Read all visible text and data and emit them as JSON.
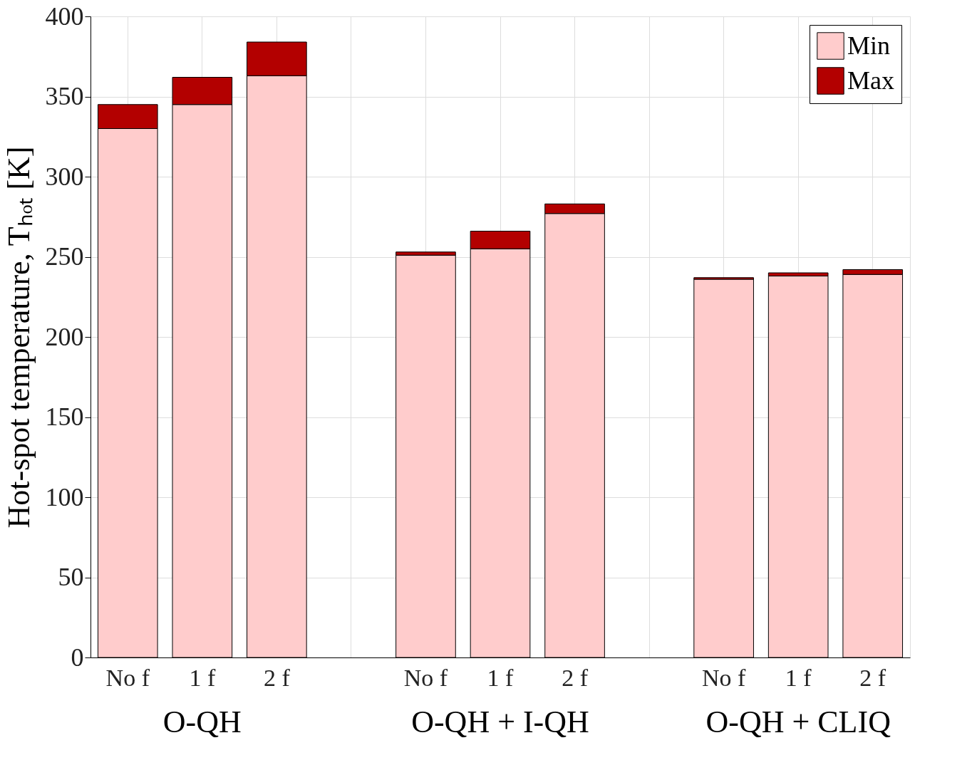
{
  "chart_data": {
    "type": "bar",
    "stacked": true,
    "categories": [
      "No f",
      "1 f",
      "2 f",
      null,
      "No f",
      "1 f",
      "2 f",
      null,
      "No f",
      "1 f",
      "2 f"
    ],
    "series": [
      {
        "name": "Min",
        "color": "#ffcccc",
        "values": [
          330,
          345,
          363,
          null,
          251,
          255,
          277,
          null,
          236,
          238,
          239
        ]
      },
      {
        "name": "Max",
        "color": "#b30000",
        "values": [
          15,
          17,
          21,
          null,
          2,
          11,
          6,
          null,
          1,
          2,
          3
        ]
      }
    ],
    "ylabel": "Hot-spot temperature, Tₕₒₜ [K]",
    "ylim": [
      0,
      400
    ],
    "yticks": [
      0,
      50,
      100,
      150,
      200,
      250,
      300,
      350,
      400
    ],
    "annotations": [
      "O-QH",
      "O-QH + I-QH",
      "O-QH + CLIQ"
    ],
    "grid": true,
    "legend": "top right"
  }
}
